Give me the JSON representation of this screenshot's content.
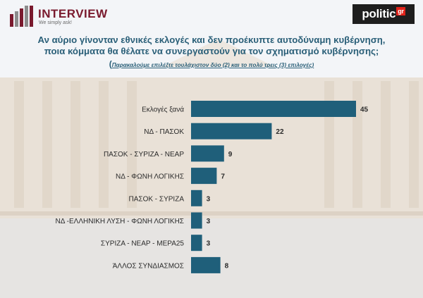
{
  "header": {
    "brand_name": "INTERVIEW",
    "brand_tagline": "We simply ask!",
    "publisher_name": "politic",
    "publisher_suffix": "gr"
  },
  "question": {
    "line1": "Αν αύριο γίνονταν εθνικές εκλογές και δεν προέκυπτε αυτοδύναμη κυβέρνηση,",
    "line2": "ποια κόμματα θα θέλατε να συνεργαστούν για τον σχηματισμό κυβέρνησης;",
    "note_open": "(",
    "note": "Παρακαλούμε επιλέξτε τουλάχιστον δύο (2) και το πολύ τρεις (3) επιλογές)"
  },
  "chart_data": {
    "type": "bar",
    "orientation": "horizontal",
    "categories": [
      "Εκλογές ξανά",
      "ΝΔ - ΠΑΣΟΚ",
      "ΠΑΣΟΚ - ΣΥΡΙΖΑ - ΝΕΑΡ",
      "ΝΔ - ΦΩΝΗ ΛΟΓΙΚΗΣ",
      "ΠΑΣΟΚ - ΣΥΡΙΖΑ",
      "ΝΔ -ΕΛΛΗΝΙΚΗ ΛΥΣΗ - ΦΩΝΗ ΛΟΓΙΚΗΣ",
      "ΣΥΡΙΖΑ - ΝΕΑΡ - ΜΕΡΑ25",
      "ΆΛΛΟΣ ΣΥΝΔΙΑΣΜΟΣ"
    ],
    "values": [
      45,
      22,
      9,
      7,
      3,
      3,
      3,
      8
    ],
    "value_labels": [
      "45",
      "22",
      "9",
      "7",
      "3",
      "3",
      "3",
      "8"
    ],
    "xlim": [
      0,
      45
    ],
    "bar_color": "#1f5f7a",
    "grid": false,
    "legend": "none"
  }
}
